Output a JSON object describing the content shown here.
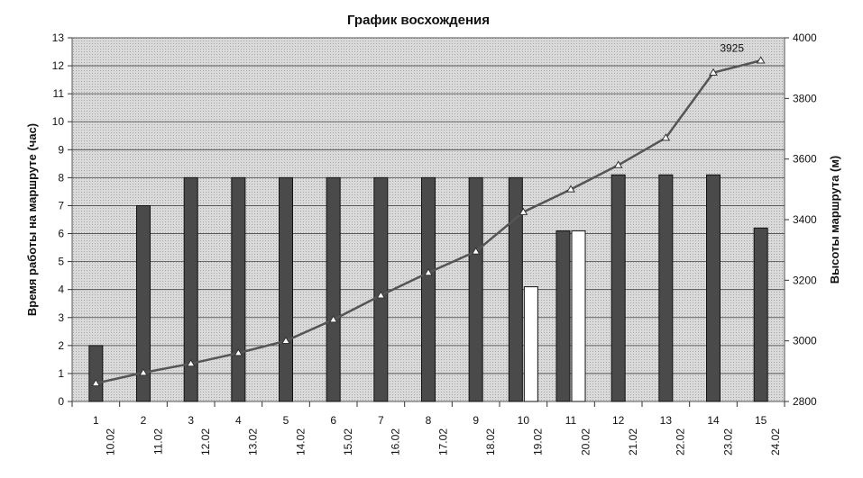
{
  "chart_data": {
    "type": "bar",
    "title": "График восхождения",
    "ylabel_left": "Время работы на маршруте (час)",
    "ylabel_right": "Высоты маршрута (м)",
    "ylim_left": [
      0,
      13
    ],
    "yticks_left": [
      0,
      1,
      2,
      3,
      4,
      5,
      6,
      7,
      8,
      9,
      10,
      11,
      12,
      13
    ],
    "ylim_right": [
      2800,
      4000
    ],
    "yticks_right": [
      2800,
      3000,
      3200,
      3400,
      3600,
      3800,
      4000
    ],
    "categories": [
      "1",
      "2",
      "3",
      "4",
      "5",
      "6",
      "7",
      "8",
      "9",
      "10",
      "11",
      "12",
      "13",
      "14",
      "15"
    ],
    "dates": [
      "10.02",
      "11.02",
      "12.02",
      "13.02",
      "14.02",
      "15.02",
      "16.02",
      "17.02",
      "18.02",
      "19.02",
      "20.02",
      "21.02",
      "22.02",
      "23.02",
      "24.02"
    ],
    "series": [
      {
        "kind": "bar",
        "axis": "left",
        "color": "#4a4a4a",
        "values": [
          2,
          7,
          8,
          8,
          8,
          8,
          8,
          8,
          8,
          8,
          6.1,
          8.1,
          8.1,
          8.1,
          6.2
        ]
      },
      {
        "kind": "bar",
        "axis": "left",
        "color": "#ffffff",
        "values": [
          null,
          null,
          null,
          null,
          null,
          null,
          null,
          null,
          null,
          4.1,
          6.1,
          null,
          null,
          null,
          null
        ]
      },
      {
        "kind": "line",
        "axis": "right",
        "color": "#555555",
        "marker": "triangle",
        "values": [
          2860,
          2895,
          2925,
          2960,
          3000,
          3070,
          3150,
          3225,
          3295,
          3425,
          3500,
          3580,
          3670,
          3885,
          3925
        ]
      }
    ],
    "annotations": [
      {
        "index": 14,
        "text": "3925"
      }
    ],
    "grid": true
  }
}
